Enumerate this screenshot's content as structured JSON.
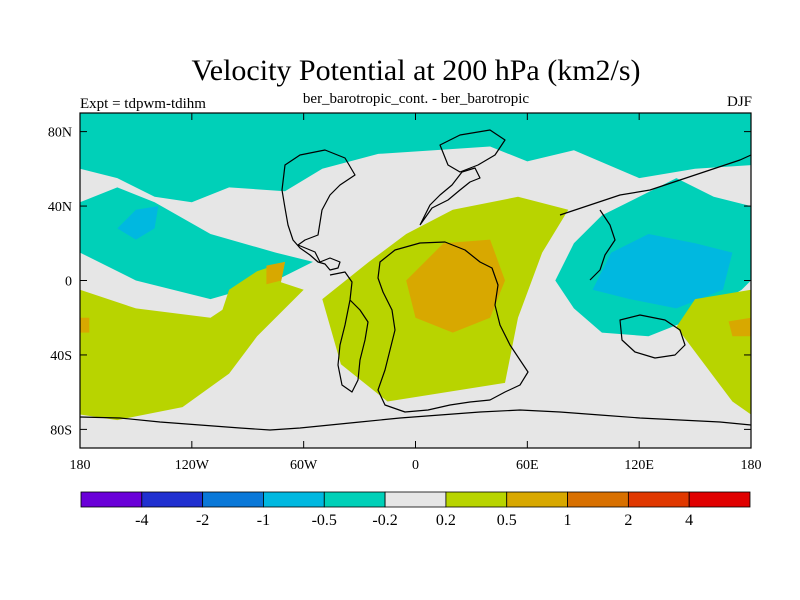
{
  "chart_data": {
    "type": "heatmap",
    "title": "Velocity Potential at 200 hPa (km2/s)",
    "left_label": "Expt = tdpwm-tdihm",
    "center_label": "ber_barotropic_cont. - ber_barotropic",
    "right_label": "DJF",
    "projection": "cylindrical-equidistant",
    "x_ticks": [
      "180",
      "120W",
      "60W",
      "0",
      "60E",
      "120E",
      "180"
    ],
    "x_tick_values": [
      -180,
      -120,
      -60,
      0,
      60,
      120,
      180
    ],
    "y_ticks": [
      "80N",
      "40N",
      "0",
      "40S",
      "80S"
    ],
    "y_tick_values": [
      80,
      40,
      0,
      -40,
      -80
    ],
    "xlim": [
      -180,
      180
    ],
    "ylim": [
      -90,
      90
    ],
    "colorbar": {
      "labels": [
        "-4",
        "-2",
        "-1",
        "-0.5",
        "-0.2",
        "0.2",
        "0.5",
        "1",
        "2",
        "4"
      ],
      "levels": [
        -4,
        -2,
        -1,
        -0.5,
        -0.2,
        0.2,
        0.5,
        1,
        2,
        4
      ],
      "colors": [
        "#6a00d8",
        "#2030d0",
        "#0a78d8",
        "#00b8e0",
        "#00d0b8",
        "#e6e6e6",
        "#b8d400",
        "#d8a800",
        "#d87000",
        "#e03800",
        "#e00000"
      ]
    },
    "field_regions": [
      {
        "name": "north-polar-negative",
        "color_index": 4,
        "polygon": [
          [
            -180,
            90
          ],
          [
            180,
            90
          ],
          [
            180,
            62
          ],
          [
            150,
            60
          ],
          [
            120,
            55
          ],
          [
            85,
            70
          ],
          [
            60,
            64
          ],
          [
            40,
            72
          ],
          [
            10,
            70
          ],
          [
            -20,
            68
          ],
          [
            -50,
            60
          ],
          [
            -70,
            48
          ],
          [
            -100,
            50
          ],
          [
            -120,
            42
          ],
          [
            -140,
            45
          ],
          [
            -160,
            55
          ],
          [
            -180,
            60
          ]
        ]
      },
      {
        "name": "asia-pacific-negative",
        "color_index": 4,
        "polygon": [
          [
            180,
            40
          ],
          [
            160,
            45
          ],
          [
            140,
            55
          ],
          [
            120,
            45
          ],
          [
            100,
            35
          ],
          [
            85,
            20
          ],
          [
            75,
            0
          ],
          [
            85,
            -15
          ],
          [
            100,
            -28
          ],
          [
            125,
            -30
          ],
          [
            150,
            -20
          ],
          [
            175,
            -5
          ],
          [
            180,
            0
          ]
        ]
      },
      {
        "name": "asia-pacific-negative-core",
        "color_index": 3,
        "polygon": [
          [
            150,
            20
          ],
          [
            170,
            15
          ],
          [
            165,
            -5
          ],
          [
            140,
            -15
          ],
          [
            115,
            -10
          ],
          [
            95,
            -5
          ],
          [
            105,
            15
          ],
          [
            125,
            25
          ]
        ]
      },
      {
        "name": "north-pacific-negative",
        "color_index": 4,
        "polygon": [
          [
            -180,
            42
          ],
          [
            -160,
            50
          ],
          [
            -140,
            42
          ],
          [
            -110,
            25
          ],
          [
            -75,
            15
          ],
          [
            -55,
            10
          ],
          [
            -75,
            0
          ],
          [
            -110,
            -10
          ],
          [
            -150,
            0
          ],
          [
            -180,
            15
          ]
        ]
      },
      {
        "name": "north-pacific-negative-core",
        "color_index": 3,
        "polygon": [
          [
            -150,
            38
          ],
          [
            -138,
            40
          ],
          [
            -140,
            28
          ],
          [
            -150,
            22
          ],
          [
            -160,
            28
          ]
        ]
      },
      {
        "name": "africa-positive",
        "color_index": 6,
        "polygon": [
          [
            -5,
            25
          ],
          [
            20,
            38
          ],
          [
            55,
            45
          ],
          [
            82,
            38
          ],
          [
            68,
            15
          ],
          [
            55,
            -20
          ],
          [
            48,
            -55
          ],
          [
            -15,
            -65
          ],
          [
            -40,
            -45
          ],
          [
            -50,
            -10
          ],
          [
            -25,
            10
          ]
        ]
      },
      {
        "name": "africa-positive-core",
        "color_index": 7,
        "polygon": [
          [
            15,
            20
          ],
          [
            40,
            22
          ],
          [
            48,
            0
          ],
          [
            40,
            -20
          ],
          [
            20,
            -28
          ],
          [
            0,
            -20
          ],
          [
            -5,
            0
          ]
        ]
      },
      {
        "name": "south-pacific-positive",
        "color_index": 6,
        "polygon": [
          [
            -180,
            -5
          ],
          [
            -150,
            -15
          ],
          [
            -110,
            -20
          ],
          [
            -95,
            -10
          ],
          [
            -75,
            0
          ],
          [
            -60,
            -5
          ],
          [
            -85,
            -30
          ],
          [
            -100,
            -50
          ],
          [
            -125,
            -68
          ],
          [
            -160,
            -75
          ],
          [
            -180,
            -72
          ]
        ]
      },
      {
        "name": "east-pacific-positive",
        "color_index": 6,
        "polygon": [
          [
            -100,
            -5
          ],
          [
            -85,
            5
          ],
          [
            -70,
            10
          ],
          [
            -75,
            -15
          ],
          [
            -90,
            -30
          ],
          [
            -105,
            -20
          ]
        ]
      },
      {
        "name": "far-east-positive",
        "color_index": 6,
        "polygon": [
          [
            180,
            -5
          ],
          [
            150,
            -10
          ],
          [
            140,
            -25
          ],
          [
            155,
            -45
          ],
          [
            170,
            -65
          ],
          [
            180,
            -72
          ]
        ]
      },
      {
        "name": "east-pacific-positive-core",
        "color_index": 7,
        "polygon": [
          [
            -80,
            8
          ],
          [
            -70,
            10
          ],
          [
            -72,
            0
          ],
          [
            -80,
            -2
          ]
        ]
      },
      {
        "name": "west-edge-core",
        "color_index": 7,
        "polygon": [
          [
            -180,
            -20
          ],
          [
            -175,
            -20
          ],
          [
            -175,
            -28
          ],
          [
            -180,
            -28
          ]
        ]
      },
      {
        "name": "east-edge-core",
        "color_index": 7,
        "polygon": [
          [
            180,
            -20
          ],
          [
            168,
            -22
          ],
          [
            170,
            -30
          ],
          [
            180,
            -30
          ]
        ]
      }
    ]
  }
}
